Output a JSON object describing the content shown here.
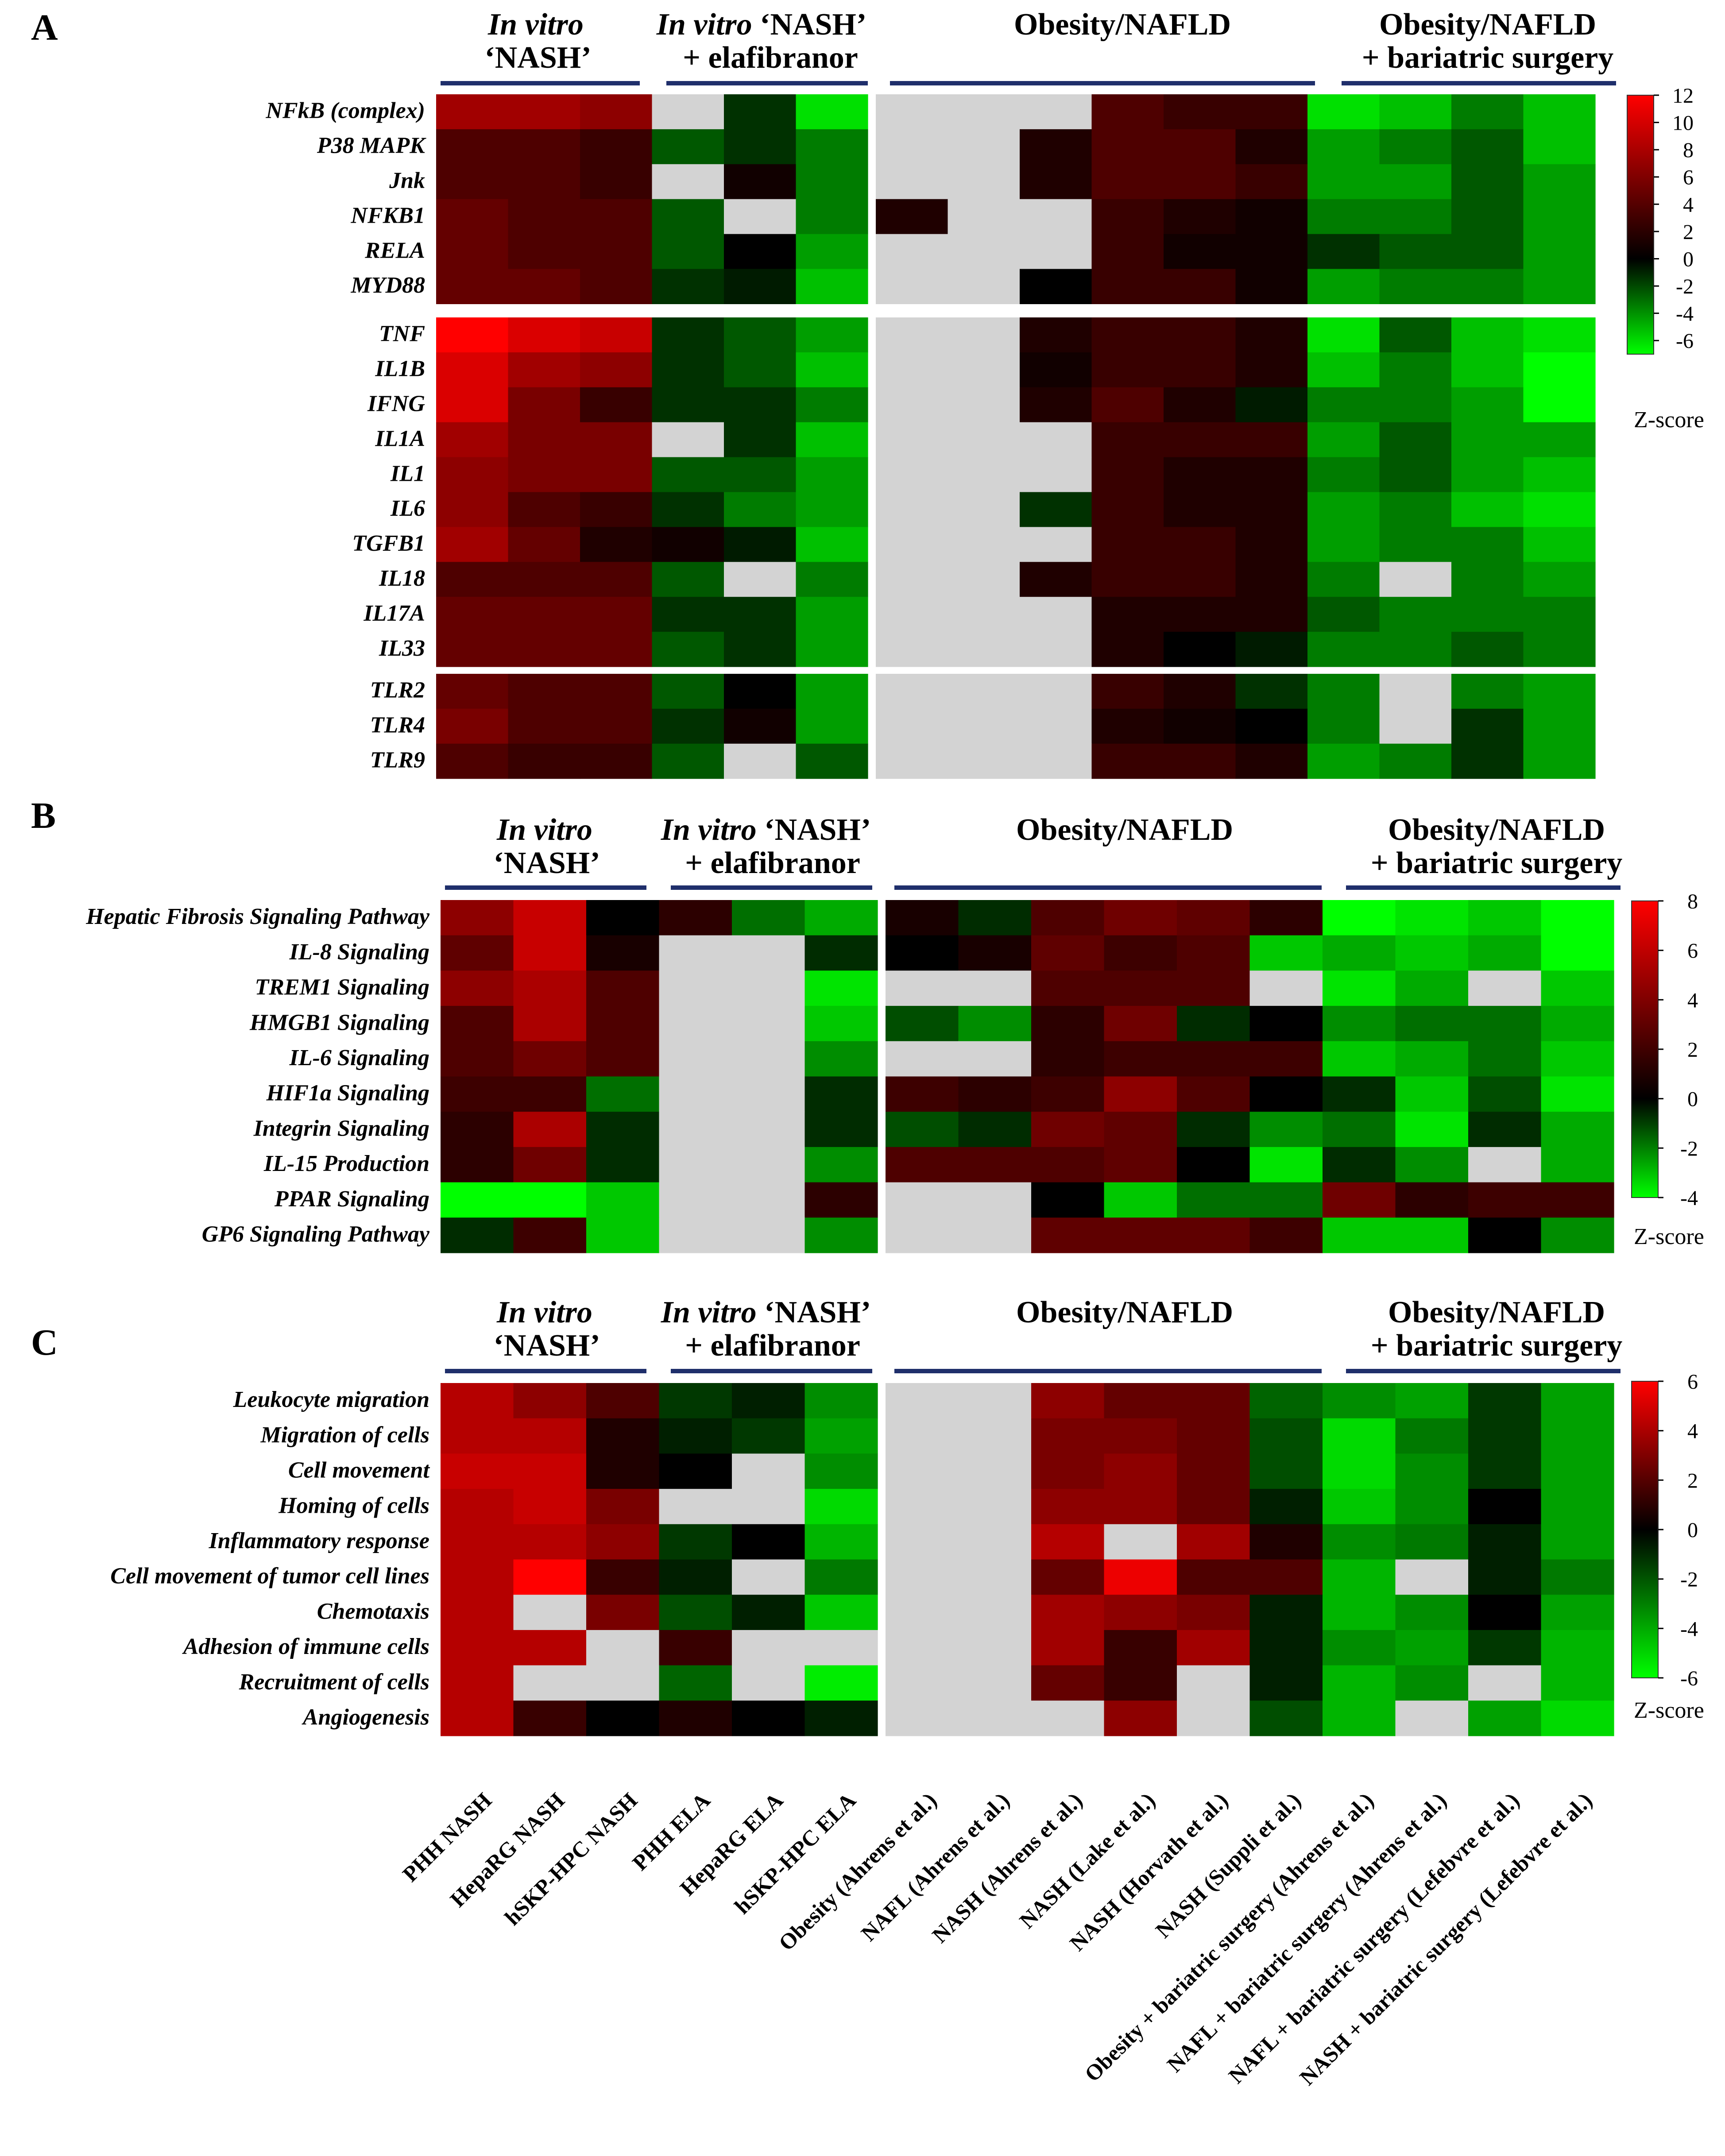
{
  "columns": [
    "PHH NASH",
    "HepaRG NASH",
    "hSKP-HPC NASH",
    "PHH ELA",
    "HepaRG ELA",
    "hSKP-HPC ELA",
    "Obesity (Ahrens et al.)",
    "NAFL (Ahrens et al.)",
    "NASH (Ahrens et al.)",
    "NASH (Lake et al.)",
    "NASH (Horvath et al.)",
    "NASH (Suppli et al.)",
    "Obesity + bariatric surgery (Ahrens et al.)",
    "NAFL + bariatric surgery (Ahrens et al.)",
    "NAFL + bariatric surgery (Lefebvre et al.)",
    "NASH + bariatric surgery (Lefebvre et al.)"
  ],
  "groups": {
    "invitro": {
      "italic": "In vitro",
      "second": "‘NASH’"
    },
    "ela": {
      "italic": "In vitro",
      "rest": " ‘NASH’",
      "second": "+ elafibranor"
    },
    "obesity": {
      "label": "Obesity/NAFLD"
    },
    "surgery": {
      "label": "Obesity/NAFLD",
      "second": "+ bariatric surgery"
    }
  },
  "colorbar_label": "Z-score",
  "chart_data": [
    {
      "type": "heatmap",
      "panel": "A",
      "colorscale": {
        "neg": "#00ff00",
        "zero": "#000000",
        "pos": "#ff0000"
      },
      "ticks": [
        12,
        10,
        8,
        6,
        4,
        2,
        0,
        -2,
        -4,
        -6
      ],
      "zrange": [
        -7,
        12
      ],
      "rows": [
        "NFkB (complex)",
        "P38 MAPK",
        "Jnk",
        "NFKB1",
        "RELA",
        "MYD88",
        "TNF",
        "IL1B",
        "IFNG",
        "IL1A",
        "IL1",
        "IL6",
        "TGFB1",
        "IL18",
        "IL17A",
        "IL33",
        "TLR2",
        "TLR4",
        "TLR9"
      ],
      "row_blocks": [
        6,
        10,
        3
      ],
      "values": [
        [
          7,
          7,
          6,
          null,
          -1,
          -6,
          null,
          null,
          null,
          3,
          2,
          2,
          -6,
          -5,
          -3,
          -5
        ],
        [
          3,
          3,
          2,
          -2,
          -1,
          -3,
          null,
          null,
          1,
          3,
          3,
          1,
          -4,
          -3,
          -2,
          -5
        ],
        [
          3,
          3,
          2,
          null,
          0.5,
          -3,
          null,
          null,
          1,
          3,
          3,
          2,
          -4,
          -4,
          -2,
          -4
        ],
        [
          4,
          3,
          3,
          -2,
          null,
          -3,
          1,
          null,
          null,
          2,
          1,
          0.5,
          -3,
          -3,
          -2,
          -4
        ],
        [
          4,
          3,
          3,
          -2,
          0,
          -4,
          null,
          null,
          null,
          2,
          0.5,
          0.5,
          -1,
          -2,
          -2,
          -4
        ],
        [
          4,
          4,
          3,
          -1,
          -0.5,
          -5,
          null,
          null,
          0,
          2,
          2,
          0.5,
          -4,
          -3,
          -3,
          -4
        ],
        [
          12,
          10,
          9,
          -1,
          -2,
          -4,
          null,
          null,
          1,
          2,
          2,
          1,
          -6,
          -2,
          -5,
          -6
        ],
        [
          10,
          7,
          6,
          -1,
          -2,
          -5,
          null,
          null,
          0.5,
          2,
          2,
          1,
          -5,
          -3,
          -5,
          -7
        ],
        [
          10,
          5,
          2,
          -1,
          -1,
          -3,
          null,
          null,
          1,
          3,
          1,
          -0.5,
          -3,
          -3,
          -4,
          -7
        ],
        [
          7,
          5,
          5,
          null,
          -1,
          -5,
          null,
          null,
          null,
          2,
          2,
          2,
          -4,
          -2,
          -4,
          -4
        ],
        [
          6,
          5,
          5,
          -2,
          -2,
          -4,
          null,
          null,
          null,
          2,
          1,
          1,
          -3,
          -2,
          -4,
          -5
        ],
        [
          6,
          3,
          2,
          -1,
          -3,
          -4,
          null,
          null,
          -1,
          2,
          1,
          1,
          -4,
          -3,
          -5,
          -6
        ],
        [
          7,
          4,
          1,
          0.5,
          -0.5,
          -5,
          null,
          null,
          null,
          2,
          2,
          1,
          -4,
          -3,
          -3,
          -5
        ],
        [
          3,
          3,
          3,
          -2,
          null,
          -3,
          null,
          null,
          1,
          2,
          2,
          1,
          -3,
          null,
          -3,
          -4
        ],
        [
          4,
          4,
          4,
          -1,
          -1,
          -4,
          null,
          null,
          null,
          1,
          1,
          1,
          -2,
          -3,
          -3,
          -3
        ],
        [
          4,
          4,
          4,
          -2,
          -1,
          -4,
          null,
          null,
          null,
          1,
          0,
          -0.5,
          -3,
          -3,
          -2,
          -3
        ],
        [
          4,
          3,
          3,
          -2,
          0,
          -4,
          null,
          null,
          null,
          2,
          1,
          -1,
          -3,
          null,
          -3,
          -4
        ],
        [
          5,
          3,
          3,
          -1,
          0.5,
          -4,
          null,
          null,
          null,
          1,
          0.5,
          0,
          -3,
          null,
          -1,
          -4
        ],
        [
          3,
          2,
          2,
          -2,
          null,
          -2,
          null,
          null,
          null,
          2,
          2,
          1,
          -4,
          -3,
          -1,
          -4
        ]
      ]
    },
    {
      "type": "heatmap",
      "panel": "B",
      "colorscale": {
        "neg": "#00ff00",
        "zero": "#000000",
        "pos": "#ff0000"
      },
      "ticks": [
        8,
        6,
        4,
        2,
        0,
        -2,
        -4
      ],
      "zrange": [
        -4,
        8
      ],
      "rows": [
        "Hepatic Fibrosis Signaling Pathway",
        "IL-8 Signaling",
        "TREM1 Signaling",
        "HMGB1 Signaling",
        "IL-6 Signaling",
        "HIF1a Signaling",
        "Integrin Signaling",
        "IL-15 Production",
        "PPAR Signaling",
        "GP6 Signaling Pathway"
      ],
      "row_blocks": [
        10
      ],
      "values": [
        [
          4,
          6,
          0,
          1,
          -1.5,
          -2.5,
          0.5,
          -0.5,
          2,
          3,
          2.5,
          1,
          -4,
          -3.5,
          -3,
          -4
        ],
        [
          2.5,
          6,
          0.5,
          null,
          null,
          -0.5,
          0,
          0.5,
          2.5,
          1.5,
          2,
          -3,
          -2.5,
          -3,
          -2.5,
          -4
        ],
        [
          4,
          5,
          2,
          null,
          null,
          -3.5,
          null,
          null,
          2,
          2,
          2,
          null,
          -3.5,
          -2.5,
          null,
          -3
        ],
        [
          2,
          5,
          2,
          null,
          null,
          -3,
          -1,
          -2,
          1,
          3,
          -0.5,
          0,
          -2,
          -1.5,
          -1.5,
          -2.5
        ],
        [
          2,
          3,
          2,
          null,
          null,
          -2,
          null,
          null,
          1,
          1.5,
          1.5,
          1.5,
          -3,
          -2.5,
          -1.5,
          -3
        ],
        [
          1.5,
          1.5,
          -1.5,
          null,
          null,
          -0.5,
          1.5,
          1,
          1.5,
          4,
          2,
          0,
          -0.5,
          -3,
          -1,
          -3.5
        ],
        [
          1,
          5,
          -0.5,
          null,
          null,
          -0.5,
          -1,
          -0.5,
          3,
          2.5,
          -0.5,
          -2,
          -1.5,
          -3.5,
          -0.5,
          -2.5
        ],
        [
          1,
          3,
          -0.5,
          null,
          null,
          -2,
          2,
          2,
          2,
          2.5,
          0,
          -3.5,
          -0.5,
          -2,
          null,
          -2.5
        ],
        [
          -4,
          -4,
          -3,
          null,
          null,
          1,
          null,
          null,
          0,
          -3,
          -1.5,
          -1.5,
          3,
          1,
          1.5,
          1.5
        ],
        [
          -0.5,
          1.5,
          -3,
          null,
          null,
          -2,
          null,
          null,
          2.5,
          2.5,
          2.5,
          1.5,
          -3,
          -3,
          0,
          -2
        ]
      ]
    },
    {
      "type": "heatmap",
      "panel": "C",
      "colorscale": {
        "neg": "#00ff00",
        "zero": "#000000",
        "pos": "#ff0000"
      },
      "ticks": [
        6,
        4,
        2,
        0,
        -2,
        -4,
        -6
      ],
      "zrange": [
        -6,
        6
      ],
      "rows": [
        "Leukocyte migration",
        "Migration of cells",
        "Cell movement",
        "Homing of cells",
        "Inflammatory response",
        "Cell movement of tumor cell lines",
        "Chemotaxis",
        "Adhesion of immune cells",
        "Recruitment of cells",
        "Angiogenesis"
      ],
      "row_blocks": [
        10
      ],
      "values": [
        [
          4,
          3,
          1.5,
          -1,
          -0.5,
          -3,
          null,
          null,
          3,
          2,
          2,
          -2,
          -3,
          -3.5,
          -1,
          -3.5
        ],
        [
          4,
          4,
          0.5,
          -0.5,
          -1,
          -3.5,
          null,
          null,
          2.5,
          2.5,
          2,
          -1.5,
          -5,
          -2.5,
          -1,
          -3.5
        ],
        [
          4.5,
          4.5,
          0.5,
          0,
          null,
          -3,
          null,
          null,
          2.5,
          3,
          2,
          -1.5,
          -5,
          -3,
          -1,
          -3.5
        ],
        [
          4,
          4.5,
          2.5,
          null,
          null,
          -5,
          null,
          null,
          3,
          3,
          2,
          -0.5,
          -4.5,
          -3,
          0,
          -3.5
        ],
        [
          4,
          4,
          3,
          -1,
          0,
          -4,
          null,
          null,
          4,
          null,
          3.5,
          0.5,
          -3,
          -2.5,
          -0.5,
          -3.5
        ],
        [
          4,
          6,
          1,
          -0.5,
          null,
          -2.5,
          null,
          null,
          2,
          5.5,
          1.5,
          1.5,
          -4,
          null,
          -0.5,
          -2.5
        ],
        [
          4,
          null,
          2.5,
          -1.5,
          -0.5,
          -4.5,
          null,
          null,
          3.5,
          3,
          2.5,
          -0.5,
          -4,
          -3,
          0,
          -3.5
        ],
        [
          4,
          4,
          null,
          1,
          null,
          null,
          null,
          null,
          3.5,
          1,
          3.5,
          -0.5,
          -3,
          -3.5,
          -1,
          -4
        ],
        [
          4,
          null,
          null,
          -2,
          null,
          -5.5,
          null,
          null,
          2,
          1,
          null,
          -0.5,
          -4,
          -3,
          null,
          -4
        ],
        [
          4,
          1,
          0,
          0.5,
          0,
          -0.5,
          null,
          null,
          null,
          3,
          null,
          -1.5,
          -4,
          null,
          -3.5,
          -5
        ]
      ]
    }
  ]
}
